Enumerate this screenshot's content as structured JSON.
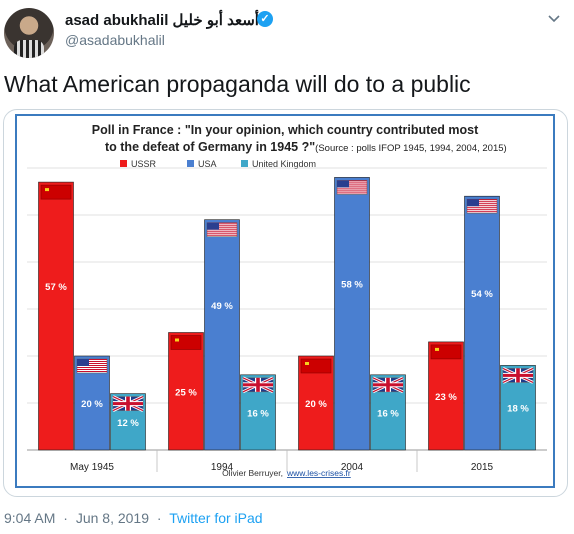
{
  "tweet": {
    "display_name": "asad abukhalil أسعد أبو خليل",
    "handle": "@asadabukhalil",
    "text": "What American propaganda will do to a public",
    "time": "9:04 AM",
    "date": "Jun 8, 2019",
    "source": "Twitter for iPad",
    "separator": "·",
    "verified_icon": "verified-badge-icon",
    "more_icon": "chevron-down-icon",
    "colors": {
      "accent": "#1da1f2",
      "muted": "#657786"
    }
  },
  "chart_data": {
    "type": "bar",
    "title_line1": "Poll in France : \"In your opinion, which country contributed most",
    "title_line2": "to the defeat of Germany in 1945 ?\"",
    "title_source": "(Source : polls IFOP 1945, 1994, 2004, 2015)",
    "categories": [
      "May 1945",
      "1994",
      "2004",
      "2015"
    ],
    "series": [
      {
        "name": "USSR",
        "color": "#ee1c1c",
        "flag": "ussr-flag-icon",
        "values": [
          57,
          25,
          20,
          23
        ]
      },
      {
        "name": "USA",
        "color": "#4a7fd0",
        "flag": "usa-flag-icon",
        "values": [
          20,
          49,
          58,
          54
        ]
      },
      {
        "name": "United Kingdom",
        "color": "#3fa7c8",
        "flag": "uk-flag-icon",
        "values": [
          12,
          16,
          16,
          18
        ]
      }
    ],
    "label_suffix": " %",
    "ylim": [
      0,
      60
    ],
    "grid": true,
    "legend_position": "top",
    "credit_author": "Olivier Berruyer,",
    "credit_site": "www.les-crises.fr"
  }
}
